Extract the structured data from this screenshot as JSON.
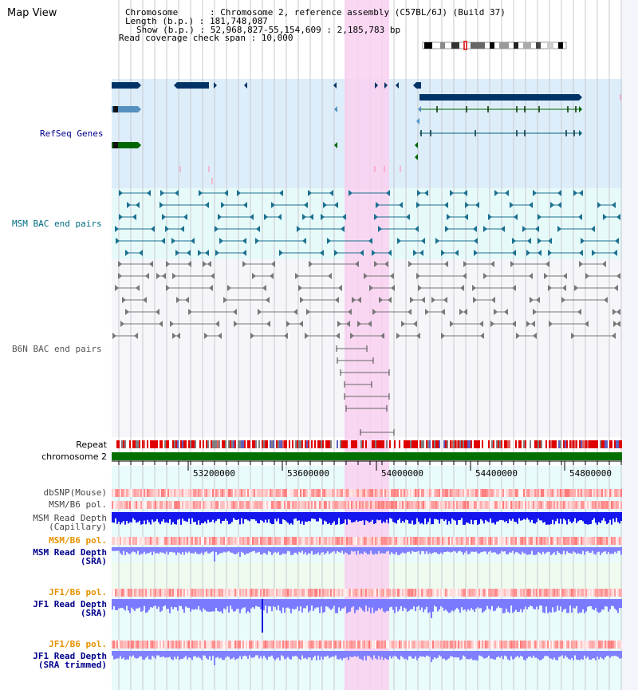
{
  "page_title": "Map View",
  "header": {
    "chromosome_line": "Chromosome      : Chromosome 2, reference assembly (C57BL/6J) (Build 37)",
    "length_line": "Length (b.p.) : 181,748,087",
    "show_line": "Show (b.p.) : 52,968,827-55,154,609 : 2,185,783 bp",
    "coverage_line": "Read coverage check span : 10,000"
  },
  "tracks": {
    "refseq": "RefSeq Genes",
    "msm_bac": "MSM BAC end pairs",
    "b6n_bac": "B6N BAC end pairs",
    "repeat": "Repeat",
    "chromosome": "chromosome 2",
    "dbsnp": "dbSNP(Mouse)",
    "msm_b6_pol": "MSM/B6 pol.",
    "msm_depth_cap_1": "MSM Read Depth",
    "msm_depth_cap_2": "(Capillary)",
    "msm_b6_pol_2": "MSM/B6 pol.",
    "msm_depth_sra_1": "MSM Read Depth",
    "msm_depth_sra_2": "(SRA)",
    "jf1_b6_pol": "JF1/B6 pol.",
    "jf1_depth_sra_1": "JF1 Read Depth",
    "jf1_depth_sra_2": "(SRA)",
    "jf1_b6_pol_2": "JF1/B6 pol.",
    "jf1_depth_trim_1": "JF1 Read Depth",
    "jf1_depth_trim_2": "(SRA trimmed)"
  },
  "axis": {
    "ticks": [
      "53200000",
      "53600000",
      "54000000",
      "54400000",
      "54800000"
    ]
  },
  "colors": {
    "refseq_bg": "#ddeefa",
    "msm_bac_bg": "#e7fafa",
    "highlight": "#f9d0f0",
    "chromosome_bar": "#007000",
    "label_blue": "#00008b",
    "label_teal": "#006c80",
    "label_orange": "#e69200",
    "depth_blue": "#1515ee",
    "depth_light": "#8080ff"
  }
}
